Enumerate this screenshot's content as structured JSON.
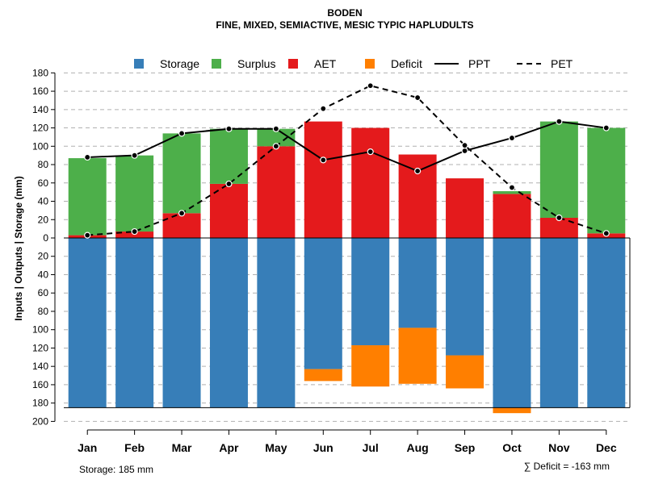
{
  "chart_data": {
    "type": "bar",
    "title": "BODEN",
    "subtitle": "FINE, MIXED, SEMIACTIVE, MESIC TYPIC HAPLUDULTS",
    "ylabel": "Inputs | Outputs | Storage    (mm)",
    "ylim": [
      -200,
      180
    ],
    "yticks_up": [
      "180",
      "160",
      "140",
      "120",
      "100",
      "80",
      "60",
      "40",
      "20",
      "0"
    ],
    "yticks_down": [
      "20",
      "40",
      "60",
      "80",
      "100",
      "120",
      "140",
      "160",
      "180",
      "200"
    ],
    "categories": [
      "Jan",
      "Feb",
      "Mar",
      "Apr",
      "May",
      "Jun",
      "Jul",
      "Aug",
      "Sep",
      "Oct",
      "Nov",
      "Dec"
    ],
    "series": [
      {
        "name": "Storage",
        "color": "#377EB8",
        "values": [
          185,
          185,
          185,
          185,
          185,
          143,
          117,
          98,
          128,
          185,
          185,
          185
        ]
      },
      {
        "name": "Surplus",
        "color": "#4DAF4A",
        "values": [
          84,
          83,
          87,
          60,
          19,
          0,
          0,
          0,
          0,
          3,
          105,
          115
        ]
      },
      {
        "name": "AET",
        "color": "#E41A1C",
        "values": [
          3,
          7,
          27,
          59,
          100,
          127,
          120,
          91,
          65,
          48,
          22,
          5
        ]
      },
      {
        "name": "Deficit",
        "color": "#FF7F00",
        "values": [
          0,
          0,
          0,
          0,
          0,
          13,
          45,
          61,
          36,
          6,
          0,
          0
        ]
      },
      {
        "name": "PPT",
        "color": "#000000",
        "style": "solid",
        "values": [
          88,
          90,
          114,
          119,
          119,
          85,
          94,
          73,
          95,
          109,
          127,
          120
        ]
      },
      {
        "name": "PET",
        "color": "#000000",
        "style": "dashed",
        "values": [
          3,
          7,
          27,
          59,
          100,
          141,
          166,
          153,
          101,
          55,
          22,
          5
        ]
      }
    ],
    "storage_capacity": 185,
    "storage_note": "Storage: 185 mm",
    "deficit_note": "∑ Deficit = -163 mm"
  }
}
